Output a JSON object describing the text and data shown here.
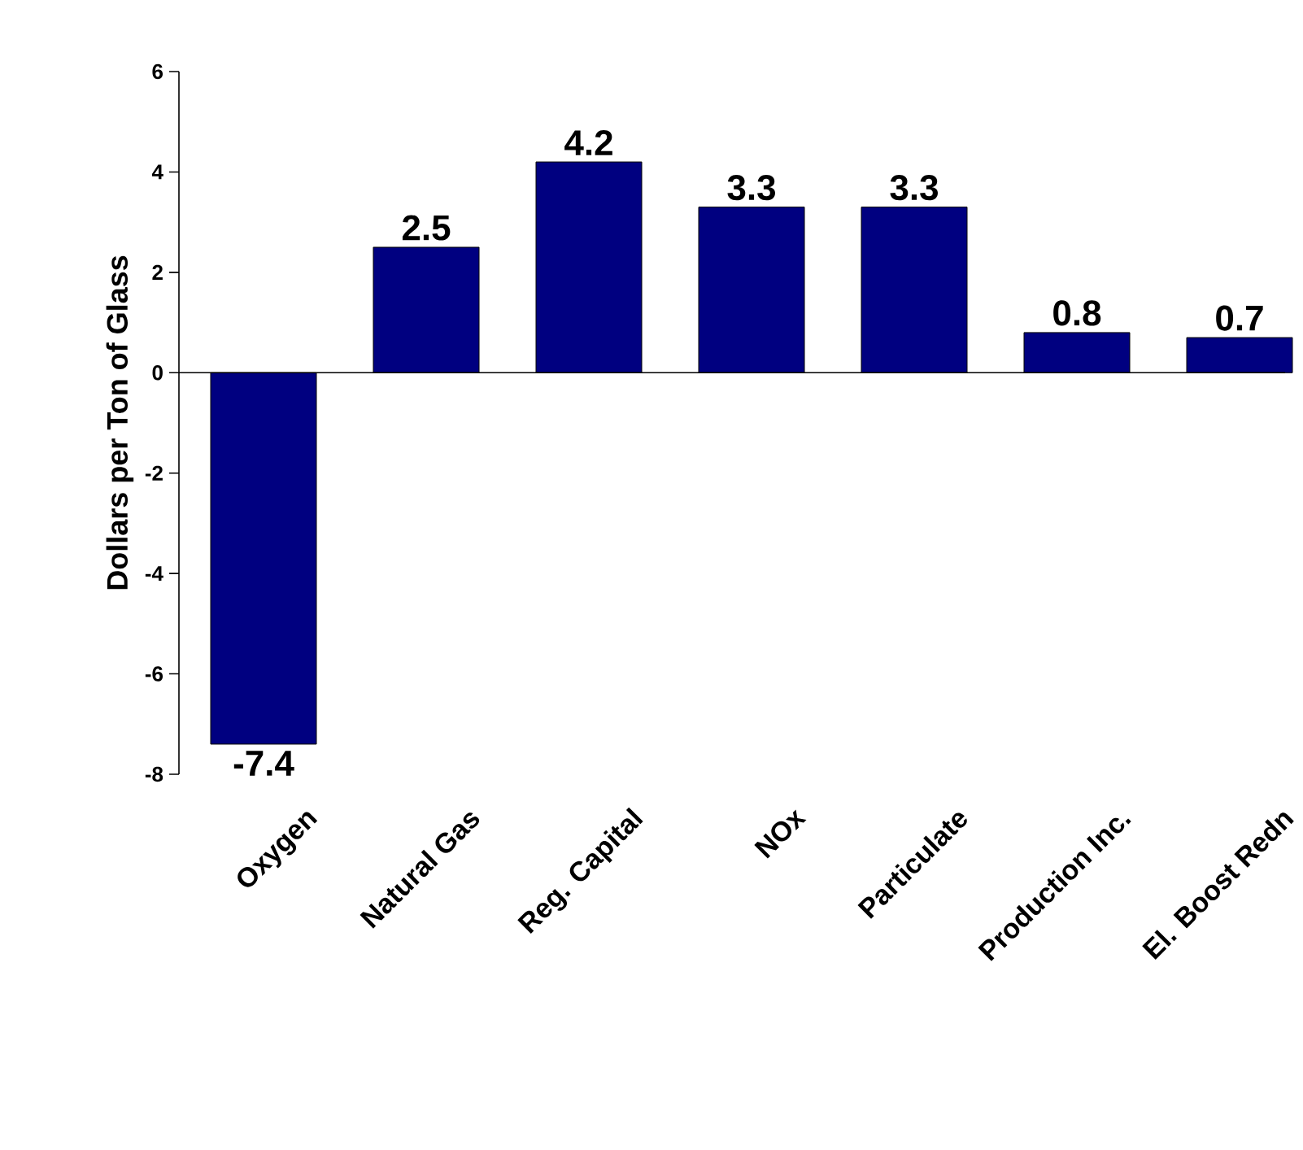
{
  "chart_data": {
    "type": "bar",
    "ylabel": "Dollars per Ton of Glass",
    "categories": [
      "Oxygen",
      "Natural Gas",
      "Reg. Capital",
      "NOx",
      "Particulate",
      "Production Inc.",
      "El. Boost Redn"
    ],
    "values": [
      -7.4,
      2.5,
      4.2,
      3.3,
      3.3,
      0.8,
      0.7
    ],
    "color": "#000080",
    "ylim": [
      -8,
      6
    ],
    "yticks": [
      -8,
      -6,
      -4,
      -2,
      0,
      2,
      4,
      6
    ],
    "data_labels": true
  }
}
